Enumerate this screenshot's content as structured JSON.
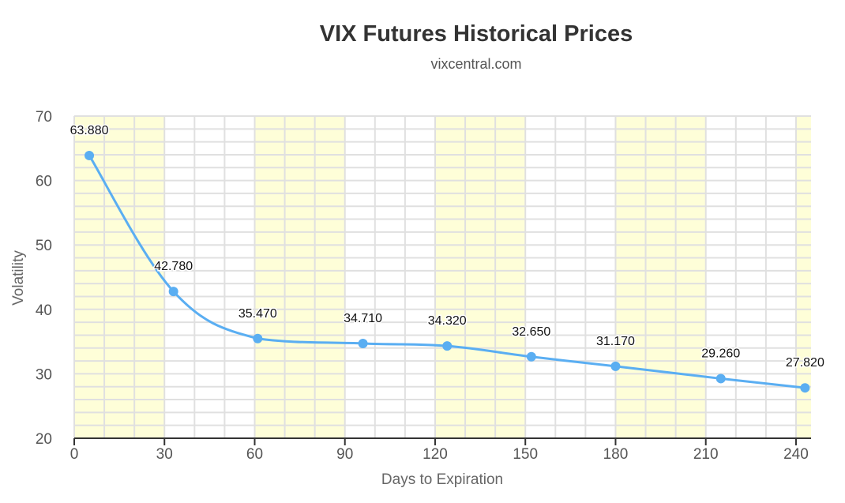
{
  "chart_data": {
    "type": "line",
    "title": "VIX Futures Historical Prices",
    "subtitle": "vixcentral.com",
    "xlabel": "Days to Expiration",
    "ylabel": "Volatility",
    "xlim": [
      0,
      245
    ],
    "ylim": [
      20,
      70
    ],
    "xticks": [
      0,
      30,
      60,
      90,
      120,
      150,
      180,
      210,
      240
    ],
    "yticks": [
      20,
      30,
      40,
      50,
      60,
      70
    ],
    "grid": true,
    "bands": [
      [
        0,
        30
      ],
      [
        60,
        90
      ],
      [
        120,
        150
      ],
      [
        180,
        210
      ],
      [
        240,
        245
      ]
    ],
    "series": [
      {
        "name": "VIX Futures",
        "color": "#5aaef2",
        "x": [
          5,
          33,
          61,
          96,
          124,
          152,
          180,
          215,
          243
        ],
        "values": [
          63.88,
          42.78,
          35.47,
          34.71,
          34.32,
          32.65,
          31.17,
          29.26,
          27.82
        ],
        "labels": [
          "63.880",
          "42.780",
          "35.470",
          "34.710",
          "34.320",
          "32.650",
          "31.170",
          "29.260",
          "27.820"
        ]
      }
    ],
    "band_color": "#fefed8"
  }
}
